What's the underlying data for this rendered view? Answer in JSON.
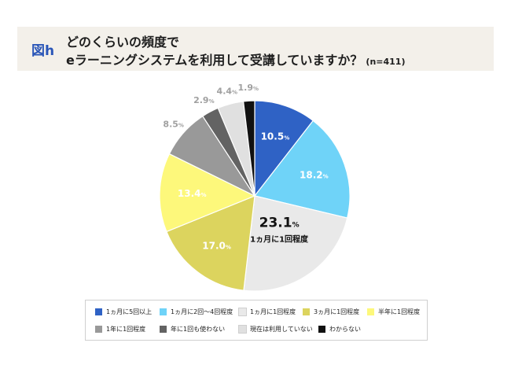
{
  "figure_label": "図h",
  "title_line1": "どのくらいの頻度で",
  "title_line2": "eラーニングシステムを利用して受講していますか？",
  "sample_note": "(n=411)",
  "chart_data": {
    "type": "pie",
    "title": "どのくらいの頻度でeラーニングシステムを利用して受講していますか？",
    "sample_size_label": "(n=411)",
    "start": "12 o'clock, clockwise",
    "slices": [
      {
        "label": "1ヵ月に5回以上",
        "value": 10.5,
        "display": "10.5",
        "color": "#2f62c5",
        "text_color": "#ffffff",
        "label_position": "inside"
      },
      {
        "label": "1ヵ月に2回〜4回程度",
        "value": 18.2,
        "display": "18.2",
        "color": "#6fd3f8",
        "text_color": "#ffffff",
        "label_position": "inside"
      },
      {
        "label": "1ヵ月に1回程度",
        "value": 23.1,
        "display": "23.1",
        "color": "#e9e9e9",
        "text_color": "#111111",
        "label_position": "inside",
        "highlight": true,
        "callout": "1ヵ月に1回程度"
      },
      {
        "label": "3ヵ月に1回程度",
        "value": 17.0,
        "display": "17.0",
        "color": "#dcd45e",
        "text_color": "#ffffff",
        "label_position": "inside"
      },
      {
        "label": "半年に1回程度",
        "value": 13.4,
        "display": "13.4",
        "color": "#fdf87b",
        "text_color": "#ffffff",
        "label_position": "inside"
      },
      {
        "label": "1年に1回程度",
        "value": 8.5,
        "display": "8.5",
        "color": "#999999",
        "text_color": "#a0a0a0",
        "label_position": "outside"
      },
      {
        "label": "年に1回も使わない",
        "value": 2.9,
        "display": "2.9",
        "color": "#636363",
        "text_color": "#a0a0a0",
        "label_position": "outside"
      },
      {
        "label": "現在は利用していない",
        "value": 4.4,
        "display": "4.4",
        "color": "#e0e0e0",
        "text_color": "#a0a0a0",
        "label_position": "outside"
      },
      {
        "label": "わからない",
        "value": 1.9,
        "display": "1.9",
        "color": "#111111",
        "text_color": "#a0a0a0",
        "label_position": "outside"
      }
    ],
    "unit": "%",
    "legend": [
      [
        "1ヵ月に5回以上",
        "1ヵ月に2回〜4回程度",
        "1ヵ月に1回程度",
        "3ヵ月に1回程度",
        "半年に1回程度"
      ],
      [
        "1年に1回程度",
        "年に1回も使わない",
        "現在は利用していない",
        "わからない"
      ]
    ],
    "legend_position": "bottom"
  }
}
